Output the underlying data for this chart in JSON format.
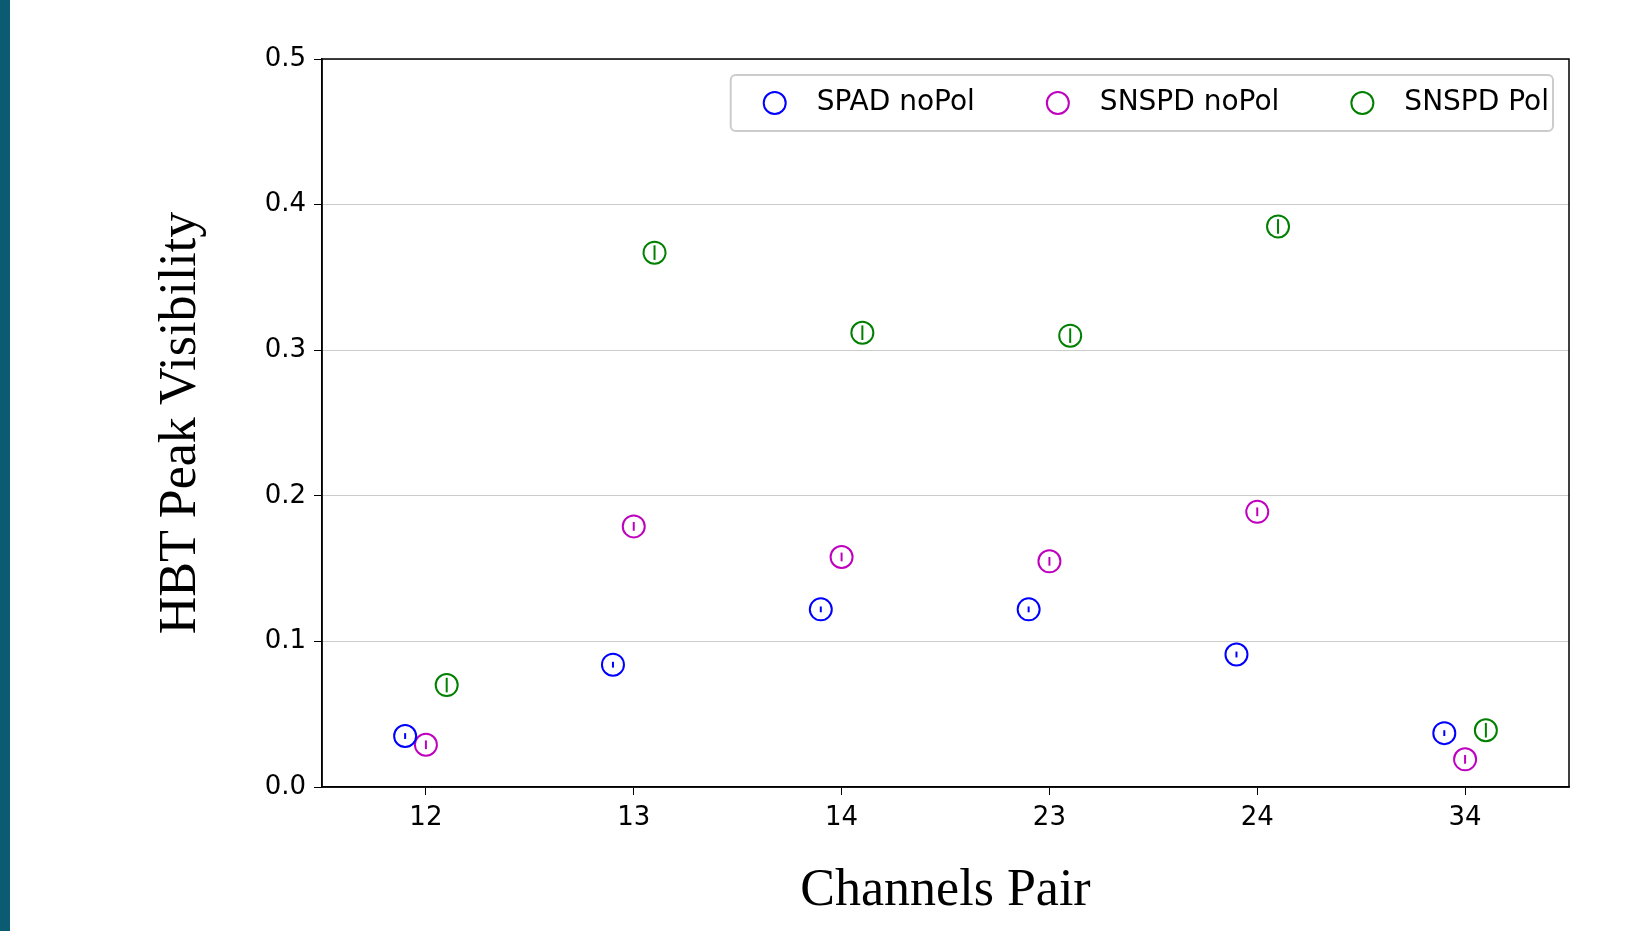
{
  "chart_data": {
    "type": "scatter",
    "xlabel": "Channels Pair",
    "ylabel": "HBT Peak Visibility",
    "categories": [
      "12",
      "13",
      "14",
      "23",
      "24",
      "34"
    ],
    "series": [
      {
        "name": "SPAD noPol",
        "color": "#0000ff",
        "values": [
          0.035,
          0.084,
          0.122,
          0.122,
          0.091,
          0.037
        ],
        "errors": [
          0.002,
          0.002,
          0.002,
          0.002,
          0.002,
          0.002
        ]
      },
      {
        "name": "SNSPD noPol",
        "color": "#bf00bf",
        "values": [
          0.029,
          0.179,
          0.158,
          0.155,
          0.189,
          0.019
        ],
        "errors": [
          0.003,
          0.003,
          0.003,
          0.003,
          0.003,
          0.003
        ]
      },
      {
        "name": "SNSPD Pol",
        "color": "#008000",
        "values": [
          0.07,
          0.367,
          0.312,
          0.31,
          0.385,
          0.039
        ],
        "errors": [
          0.005,
          0.005,
          0.005,
          0.005,
          0.005,
          0.005
        ]
      }
    ],
    "ylim": [
      0,
      0.5
    ],
    "yticks": [
      {
        "value": 0,
        "label": "0.0"
      },
      {
        "value": 0.1,
        "label": "0.1"
      },
      {
        "value": 0.2,
        "label": "0.2"
      },
      {
        "value": 0.3,
        "label": "0.3"
      },
      {
        "value": 0.4,
        "label": "0.4"
      },
      {
        "value": 0.5,
        "label": "0.5"
      }
    ],
    "grid": "y",
    "legend": "top right",
    "marker": "circle"
  }
}
